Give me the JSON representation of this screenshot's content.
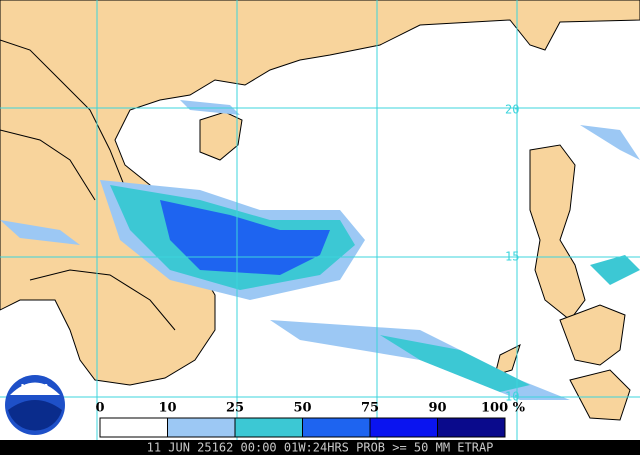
{
  "legend": {
    "labels": [
      "0",
      "10",
      "25",
      "50",
      "75",
      "90",
      "100 %"
    ],
    "colors": [
      "#ffffff",
      "#9cc8f4",
      "#3cc8d4",
      "#1e64f0",
      "#0a14f0",
      "#0a0a8c"
    ]
  },
  "grid_labels": [
    "20",
    "15",
    "10"
  ],
  "logo": "NOAA",
  "footer": "11 JUN 25162 00:00 01W:24HRS PROB >= 50 MM ETRAP"
}
